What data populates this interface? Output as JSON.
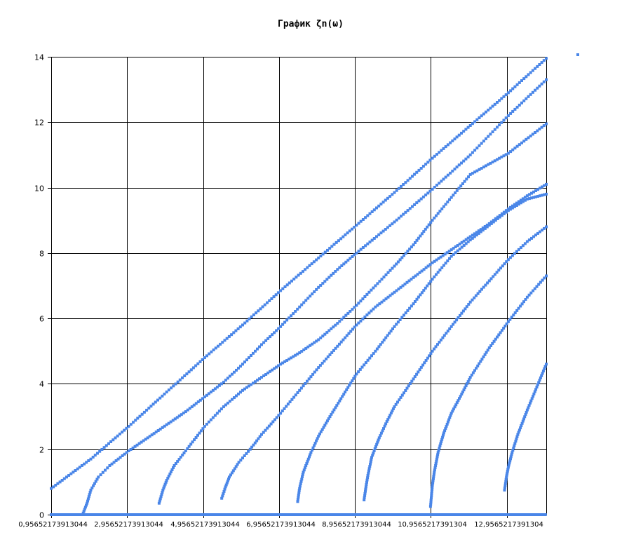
{
  "chart_data": {
    "type": "scatter",
    "title": "График ζn(ω)",
    "xlabel": "",
    "ylabel": "",
    "xlim": [
      0.95652173913044,
      14.0
    ],
    "ylim": [
      0,
      14
    ],
    "grid": true,
    "legend": "top-right",
    "series_color": "#4A86E8",
    "y_ticks": [
      0,
      2,
      4,
      6,
      8,
      10,
      12,
      14
    ],
    "x_ticks": [
      {
        "value": 0.95652173913044,
        "label": "0,95652173913044"
      },
      {
        "value": 2.95652173913044,
        "label": "2,95652173913044"
      },
      {
        "value": 4.95652173913044,
        "label": "4,95652173913044"
      },
      {
        "value": 6.95652173913044,
        "label": "6,95652173913044"
      },
      {
        "value": 8.95652173913044,
        "label": "8,95652173913044"
      },
      {
        "value": 10.9565217391304,
        "label": "10,9565217391304"
      },
      {
        "value": 12.9565217391304,
        "label": "12,9565217391304"
      }
    ],
    "series": [
      {
        "x": [
          0.957,
          2.0,
          3.0,
          4.0,
          5.0,
          6.0,
          7.0,
          8.0,
          9.0,
          10.0,
          11.0,
          12.0,
          13.0,
          14.0
        ],
        "y": [
          0.8,
          1.7,
          2.7,
          3.75,
          4.8,
          5.8,
          6.85,
          7.85,
          8.85,
          9.85,
          10.9,
          11.9,
          12.9,
          13.95
        ]
      },
      {
        "x": [
          1.8,
          1.9,
          2.0,
          2.2,
          2.5,
          3.0,
          3.5,
          4.0,
          4.5,
          5.0,
          5.5,
          6.0,
          6.5,
          7.0,
          7.5,
          8.0,
          8.5,
          9.0,
          10.0,
          11.0,
          12.0,
          13.0,
          14.0
        ],
        "y": [
          0.05,
          0.35,
          0.75,
          1.15,
          1.5,
          1.95,
          2.35,
          2.75,
          3.15,
          3.6,
          4.05,
          4.6,
          5.2,
          5.75,
          6.35,
          6.95,
          7.5,
          8.0,
          8.95,
          9.95,
          11.0,
          12.2,
          13.3
        ]
      },
      {
        "x": [
          3.8,
          3.9,
          4.0,
          4.2,
          4.5,
          5.0,
          5.5,
          6.0,
          6.5,
          7.0,
          7.5,
          8.0,
          8.5,
          9.0,
          9.5,
          10.0,
          10.5,
          11.0,
          12.0,
          13.0,
          14.0
        ],
        "y": [
          0.35,
          0.75,
          1.05,
          1.5,
          1.95,
          2.7,
          3.3,
          3.8,
          4.2,
          4.6,
          4.95,
          5.35,
          5.85,
          6.4,
          7.0,
          7.6,
          8.25,
          9.0,
          10.4,
          11.05,
          11.95
        ]
      },
      {
        "x": [
          5.45,
          5.55,
          5.65,
          5.9,
          6.2,
          6.5,
          7.0,
          7.5,
          8.0,
          8.5,
          9.0,
          9.5,
          10.0,
          10.5,
          11.0,
          11.5,
          12.0,
          12.5,
          13.0,
          13.5,
          14.0
        ],
        "y": [
          0.5,
          0.85,
          1.15,
          1.6,
          2.0,
          2.45,
          3.1,
          3.8,
          4.5,
          5.15,
          5.8,
          6.35,
          6.8,
          7.25,
          7.7,
          8.1,
          8.5,
          8.9,
          9.35,
          9.75,
          10.1
        ]
      },
      {
        "x": [
          7.45,
          7.5,
          7.6,
          7.8,
          8.0,
          8.3,
          8.7,
          9.0,
          9.5,
          10.0,
          10.5,
          11.0,
          11.5,
          12.0,
          12.5,
          13.0,
          13.5,
          14.0
        ],
        "y": [
          0.4,
          0.8,
          1.3,
          1.9,
          2.4,
          3.0,
          3.75,
          4.3,
          5.0,
          5.75,
          6.45,
          7.2,
          7.9,
          8.4,
          8.85,
          9.3,
          9.65,
          9.8
        ]
      },
      {
        "x": [
          9.2,
          9.25,
          9.3,
          9.4,
          9.6,
          9.8,
          10.0,
          10.5,
          11.0,
          11.5,
          12.0,
          12.5,
          13.0,
          13.5,
          14.0
        ],
        "y": [
          0.45,
          0.85,
          1.2,
          1.75,
          2.35,
          2.85,
          3.3,
          4.15,
          5.0,
          5.75,
          6.5,
          7.15,
          7.8,
          8.35,
          8.8
        ]
      },
      {
        "x": [
          10.95,
          11.0,
          11.05,
          11.15,
          11.3,
          11.5,
          11.8,
          12.0,
          12.5,
          13.0,
          13.5,
          14.0
        ],
        "y": [
          0.25,
          0.9,
          1.3,
          1.9,
          2.5,
          3.1,
          3.75,
          4.2,
          5.1,
          5.9,
          6.65,
          7.3
        ]
      },
      {
        "x": [
          12.9,
          12.95,
          13.0,
          13.1,
          13.25,
          13.5,
          13.75,
          14.0
        ],
        "y": [
          0.75,
          1.15,
          1.45,
          1.9,
          2.45,
          3.2,
          3.9,
          4.6
        ]
      },
      {
        "x": [
          0.957,
          14.0
        ],
        "y": [
          0.0,
          0.0
        ]
      }
    ]
  }
}
